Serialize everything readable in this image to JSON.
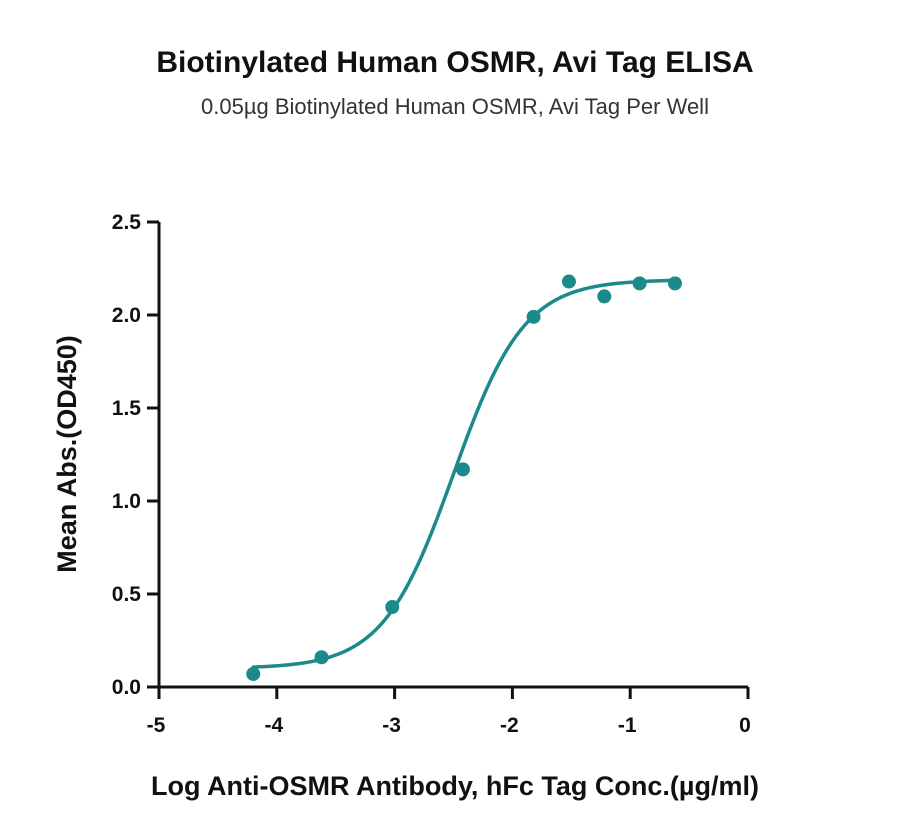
{
  "chart_data": {
    "type": "scatter",
    "title": "Biotinylated Human OSMR, Avi Tag ELISA",
    "subtitle": "0.05µg Biotinylated Human OSMR, Avi Tag Per Well",
    "xlabel": "Log Anti-OSMR Antibody, hFc Tag Conc.(µg/ml)",
    "ylabel": "Mean Abs.(OD450)",
    "xlim": [
      -5,
      0
    ],
    "ylim": [
      0,
      2.5
    ],
    "x_ticks": [
      "-5",
      "-4",
      "-3",
      "-2",
      "-1",
      "0"
    ],
    "y_ticks": [
      "0.0",
      "0.5",
      "1.0",
      "1.5",
      "2.0",
      "2.5"
    ],
    "grid": false,
    "color": "#1a8a8a",
    "series": [
      {
        "x": [
          -4.2,
          -3.62,
          -3.02,
          -2.42,
          -1.82,
          -1.52,
          -1.22,
          -0.92,
          -0.62
        ],
        "y": [
          0.07,
          0.16,
          0.43,
          1.17,
          1.99,
          2.18,
          2.1,
          2.17,
          2.17
        ],
        "fit": {
          "model": "4PL",
          "x_range": [
            -4.2,
            -0.62
          ],
          "bottom": 0.1,
          "top": 2.19,
          "logEC50": -2.5,
          "hill": 1.45
        }
      }
    ]
  }
}
